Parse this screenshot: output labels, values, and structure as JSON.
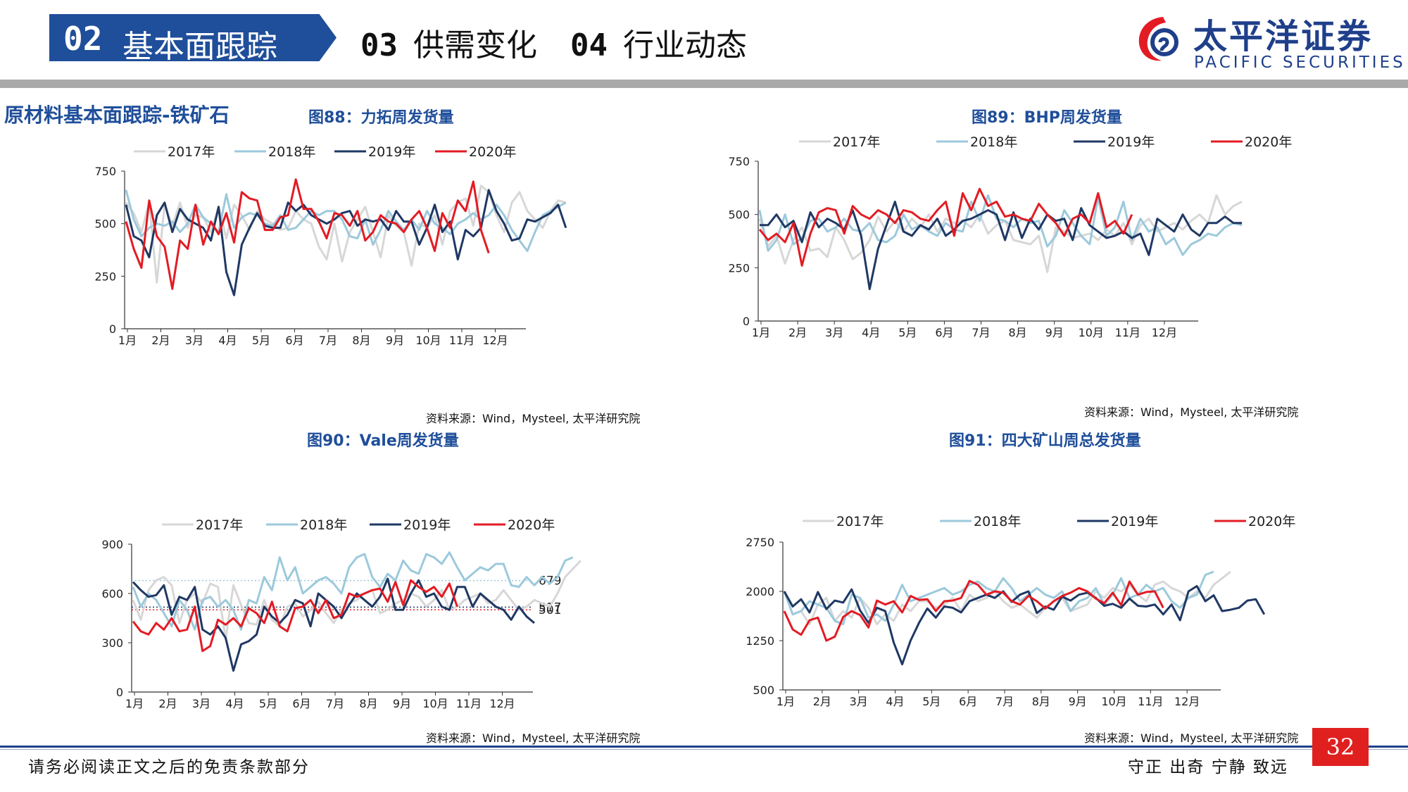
{
  "header": {
    "tabs": [
      {
        "num": "02",
        "label": "基本面跟踪"
      },
      {
        "num": "03",
        "label": "供需变化"
      },
      {
        "num": "04",
        "label": "行业动态"
      }
    ],
    "logo_cn": "太平洋证券",
    "logo_en": "PACIFIC SECURITIES"
  },
  "section_title": "原材料基本面跟踪-铁矿石",
  "source_note": "资料来源：Wind，Mysteel, 太平洋研究院",
  "footer": {
    "disclaimer": "请务必阅读正文之后的免责条款部分",
    "motto": "守正 出奇 宁静 致远",
    "page": "32"
  },
  "colors": {
    "y2017": "#d7d7d7",
    "y2018": "#9cc9dc",
    "y2019": "#1f3864",
    "y2020": "#e31b23",
    "accent": "#1f4e9a"
  },
  "chart_data": [
    {
      "id": "fig88",
      "title": "图88：力拓周发货量",
      "type": "line",
      "ylim": [
        0,
        750
      ],
      "yticks": [
        0,
        250,
        500,
        750
      ],
      "xticks": [
        "1月",
        "2月",
        "3月",
        "4月",
        "5月",
        "6月",
        "7月",
        "8月",
        "9月",
        "10月",
        "11月",
        "12月"
      ],
      "legend": "top",
      "series": [
        {
          "name": "2017年",
          "key": "y2017",
          "values": [
            600,
            550,
            460,
            600,
            220,
            590,
            490,
            600,
            480,
            540,
            530,
            460,
            580,
            430,
            590,
            540,
            470,
            560,
            520,
            500,
            470,
            480,
            560,
            520,
            500,
            390,
            330,
            500,
            320,
            460,
            520,
            580,
            460,
            340,
            540,
            490,
            460,
            300,
            500,
            480,
            540,
            400,
            560,
            600,
            620,
            490,
            680,
            650,
            540,
            460,
            600,
            650,
            560,
            520,
            480,
            560,
            610,
            600
          ]
        },
        {
          "name": "2018年",
          "key": "y2018",
          "values": [
            660,
            520,
            440,
            480,
            500,
            490,
            510,
            460,
            500,
            590,
            530,
            500,
            460,
            640,
            480,
            530,
            550,
            540,
            500,
            490,
            540,
            470,
            480,
            520,
            560,
            540,
            560,
            560,
            520,
            440,
            430,
            520,
            400,
            470,
            560,
            510,
            470,
            520,
            470,
            560,
            500,
            480,
            450,
            500,
            520,
            550,
            520,
            540,
            590,
            540,
            470,
            420,
            370,
            460,
            540,
            560,
            580,
            600
          ]
        },
        {
          "name": "2019年",
          "key": "y2019",
          "values": [
            590,
            440,
            420,
            340,
            540,
            600,
            460,
            570,
            520,
            500,
            480,
            420,
            580,
            270,
            160,
            400,
            480,
            550,
            490,
            480,
            480,
            600,
            560,
            590,
            540,
            520,
            500,
            520,
            550,
            560,
            490,
            520,
            510,
            520,
            470,
            560,
            510,
            510,
            400,
            480,
            590,
            460,
            510,
            330,
            470,
            440,
            480,
            660,
            560,
            500,
            420,
            430,
            520,
            510,
            530,
            550,
            590,
            480
          ]
        },
        {
          "name": "2020年",
          "key": "y2020",
          "values": [
            510,
            380,
            290,
            610,
            440,
            390,
            190,
            420,
            380,
            590,
            400,
            510,
            450,
            550,
            410,
            650,
            620,
            610,
            470,
            470,
            530,
            540,
            710,
            570,
            570,
            510,
            430,
            550,
            540,
            490,
            560,
            420,
            460,
            540,
            510,
            500,
            460,
            520,
            560,
            480,
            370,
            550,
            480,
            610,
            560,
            700,
            470,
            360
          ]
        }
      ]
    },
    {
      "id": "fig89",
      "title": "图89：BHP周发货量",
      "type": "line",
      "ylim": [
        0,
        750
      ],
      "yticks": [
        0,
        250,
        500,
        750
      ],
      "xticks": [
        "1月",
        "2月",
        "3月",
        "4月",
        "5月",
        "6月",
        "7月",
        "8月",
        "9月",
        "10月",
        "11月",
        "12月"
      ],
      "legend": "top",
      "series": [
        {
          "name": "2017年",
          "key": "y2017",
          "values": [
            480,
            350,
            400,
            270,
            380,
            440,
            330,
            340,
            300,
            440,
            380,
            290,
            320,
            380,
            490,
            420,
            470,
            420,
            480,
            440,
            500,
            420,
            480,
            460,
            470,
            440,
            500,
            410,
            450,
            470,
            380,
            370,
            360,
            400,
            230,
            440,
            420,
            390,
            400,
            410,
            380,
            430,
            400,
            460,
            360,
            450,
            480,
            420,
            440,
            460,
            430,
            470,
            500,
            460,
            590,
            500,
            540,
            560
          ]
        },
        {
          "name": "2018年",
          "key": "y2018",
          "values": [
            520,
            330,
            380,
            500,
            360,
            390,
            470,
            480,
            420,
            440,
            480,
            430,
            420,
            460,
            380,
            370,
            400,
            500,
            430,
            450,
            420,
            400,
            460,
            430,
            420,
            560,
            470,
            590,
            480,
            470,
            440,
            480,
            460,
            470,
            350,
            400,
            520,
            460,
            400,
            360,
            580,
            400,
            440,
            560,
            380,
            480,
            420,
            440,
            360,
            390,
            310,
            360,
            380,
            410,
            400,
            440,
            460,
            450
          ]
        },
        {
          "name": "2019年",
          "key": "y2019",
          "values": [
            450,
            450,
            500,
            440,
            470,
            370,
            510,
            440,
            480,
            460,
            430,
            520,
            400,
            150,
            340,
            450,
            560,
            420,
            400,
            450,
            430,
            480,
            400,
            430,
            470,
            480,
            500,
            520,
            500,
            380,
            510,
            390,
            480,
            430,
            500,
            470,
            480,
            380,
            530,
            450,
            420,
            390,
            400,
            420,
            390,
            410,
            310,
            480,
            450,
            420,
            500,
            430,
            400,
            460,
            460,
            490,
            460,
            460
          ]
        },
        {
          "name": "2020年",
          "key": "y2020",
          "values": [
            430,
            380,
            410,
            370,
            460,
            260,
            410,
            510,
            530,
            520,
            410,
            540,
            500,
            480,
            520,
            500,
            460,
            520,
            510,
            480,
            470,
            520,
            560,
            400,
            600,
            520,
            620,
            540,
            560,
            490,
            500,
            480,
            470,
            550,
            500,
            460,
            400,
            480,
            500,
            460,
            600,
            440,
            470,
            410,
            500
          ]
        }
      ]
    },
    {
      "id": "fig90",
      "title": "图90：Vale周发货量",
      "type": "line",
      "ylim": [
        0,
        900
      ],
      "yticks": [
        0,
        300,
        600,
        900
      ],
      "xticks": [
        "1月",
        "2月",
        "3月",
        "4月",
        "5月",
        "6月",
        "7月",
        "8月",
        "9月",
        "10月",
        "11月",
        "12月"
      ],
      "legend": "top",
      "reference_lines": [
        {
          "value": 679,
          "label": "679",
          "key": "y2018"
        },
        {
          "value": 517,
          "label": "517",
          "key": "y2019"
        },
        {
          "value": 501,
          "label": "501",
          "key": "y2020"
        }
      ],
      "series": [
        {
          "name": "2017年",
          "key": "y2017",
          "values": [
            560,
            440,
            620,
            680,
            700,
            650,
            420,
            560,
            600,
            540,
            660,
            640,
            320,
            650,
            530,
            420,
            410,
            560,
            440,
            400,
            520,
            540,
            460,
            500,
            550,
            480,
            420,
            500,
            540,
            560,
            600,
            620,
            480,
            500,
            540,
            560,
            600,
            580,
            520,
            560,
            620,
            500,
            520,
            560,
            580,
            600,
            540,
            560,
            620,
            560,
            500,
            520,
            560,
            540,
            520,
            600,
            700,
            750,
            800
          ]
        },
        {
          "name": "2018年",
          "key": "y2018",
          "values": [
            640,
            520,
            600,
            560,
            480,
            400,
            560,
            500,
            380,
            560,
            580,
            520,
            560,
            500,
            380,
            560,
            540,
            700,
            620,
            820,
            680,
            760,
            600,
            640,
            680,
            700,
            660,
            600,
            760,
            820,
            840,
            700,
            640,
            720,
            680,
            800,
            740,
            720,
            840,
            820,
            780,
            850,
            760,
            680,
            720,
            760,
            740,
            780,
            780,
            650,
            640,
            700,
            650,
            700,
            660,
            700,
            800,
            820
          ]
        },
        {
          "name": "2019年",
          "key": "y2019",
          "values": [
            670,
            620,
            580,
            590,
            650,
            470,
            580,
            560,
            640,
            380,
            350,
            400,
            330,
            130,
            290,
            310,
            350,
            520,
            460,
            420,
            470,
            560,
            540,
            400,
            600,
            560,
            520,
            450,
            530,
            600,
            560,
            520,
            580,
            690,
            500,
            500,
            600,
            680,
            580,
            600,
            520,
            500,
            640,
            640,
            520,
            600,
            560,
            520,
            500,
            440,
            520,
            460,
            420
          ]
        },
        {
          "name": "2020年",
          "key": "y2020",
          "values": [
            430,
            370,
            350,
            420,
            380,
            450,
            370,
            380,
            520,
            250,
            280,
            440,
            410,
            450,
            400,
            510,
            480,
            420,
            550,
            400,
            370,
            510,
            520,
            560,
            480,
            560,
            450,
            470,
            600,
            580,
            600,
            620,
            630,
            550,
            670,
            530,
            680,
            640,
            610,
            640,
            580,
            660,
            520
          ]
        }
      ]
    },
    {
      "id": "fig91",
      "title": "图91：四大矿山周总发货量",
      "type": "line",
      "ylim": [
        500,
        2750
      ],
      "yticks": [
        500,
        1250,
        2000,
        2750
      ],
      "xticks": [
        "1月",
        "2月",
        "3月",
        "4月",
        "5月",
        "6月",
        "7月",
        "8月",
        "9月",
        "10月",
        "11月",
        "12月"
      ],
      "legend": "top",
      "series": [
        {
          "name": "2017年",
          "key": "y2017",
          "values": [
            2000,
            1650,
            1700,
            1500,
            1800,
            1900,
            1550,
            1700,
            1600,
            1900,
            1750,
            1500,
            1650,
            1550,
            1800,
            1700,
            1850,
            1850,
            1750,
            1800,
            1900,
            1700,
            1950,
            1850,
            1900,
            2000,
            1850,
            1750,
            1800,
            1700,
            1600,
            1750,
            1850,
            1900,
            1700,
            1750,
            1800,
            2000,
            1900,
            2050,
            2000,
            2100,
            1950,
            1850,
            2100,
            2150,
            2050,
            2000,
            1900,
            2000,
            1900,
            2100,
            2200,
            2300
          ]
        },
        {
          "name": "2018年",
          "key": "y2018",
          "values": [
            2000,
            1650,
            1700,
            1850,
            1800,
            1750,
            1550,
            1500,
            1950,
            1900,
            1600,
            1650,
            1550,
            1800,
            2100,
            1850,
            1900,
            1950,
            2000,
            2050,
            1950,
            2000,
            2100,
            2150,
            2050,
            2000,
            2200,
            2050,
            1850,
            1950,
            2050,
            1950,
            1900,
            2000,
            1700,
            1850,
            1900,
            2050,
            1800,
            1950,
            2200,
            1900,
            1950,
            2100,
            2000,
            2050,
            1850,
            1750,
            1900,
            1950,
            2250,
            2300
          ]
        },
        {
          "name": "2019年",
          "key": "y2019",
          "values": [
            2000,
            1770,
            1880,
            1680,
            1990,
            1730,
            1860,
            1830,
            2030,
            1710,
            1520,
            1750,
            1700,
            1220,
            890,
            1250,
            1520,
            1740,
            1600,
            1770,
            1750,
            1680,
            1850,
            1900,
            1950,
            1900,
            2000,
            1840,
            1950,
            2000,
            1670,
            1770,
            1720,
            1920,
            1860,
            1950,
            1980,
            1900,
            1780,
            1810,
            1750,
            1890,
            1780,
            1770,
            1800,
            1650,
            1800,
            1560,
            2000,
            2080,
            1850,
            1940,
            1700,
            1720,
            1750,
            1860,
            1880,
            1650
          ]
        },
        {
          "name": "2020年",
          "key": "y2020",
          "values": [
            1700,
            1420,
            1340,
            1560,
            1600,
            1250,
            1310,
            1610,
            1700,
            1640,
            1450,
            1860,
            1800,
            1850,
            1680,
            1930,
            1870,
            1880,
            1700,
            1850,
            1860,
            1900,
            2160,
            2100,
            1950,
            2000,
            1980,
            1850,
            1800,
            1930,
            1850,
            1740,
            1850,
            1930,
            1980,
            2050,
            2000,
            1890,
            1820,
            1980,
            1790,
            2150,
            1950,
            1990,
            2000,
            1750
          ]
        }
      ]
    }
  ]
}
